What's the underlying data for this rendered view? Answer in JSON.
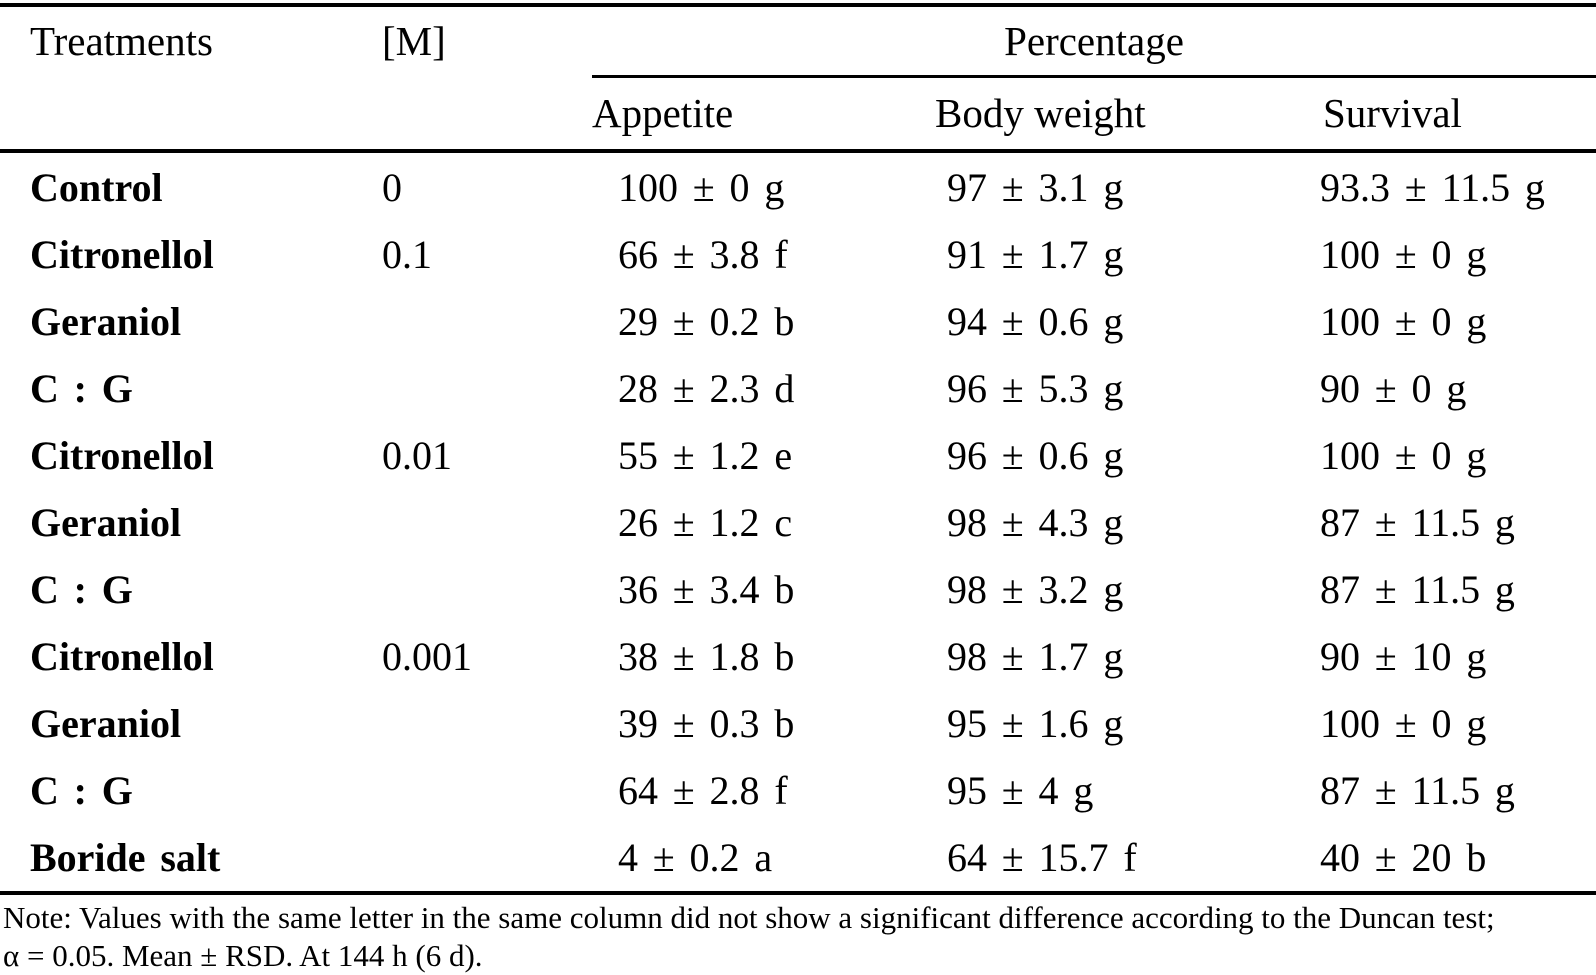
{
  "colors": {
    "background": "#ffffff",
    "text": "#000000",
    "rule": "#000000"
  },
  "table": {
    "headers": {
      "treatments": "Treatments",
      "concentration": "[M]",
      "percentage_group": "Percentage",
      "sub_headers": [
        "Appetite",
        "Body weight",
        "Survival"
      ]
    },
    "rows": [
      {
        "treatment": "Control",
        "concentration": "0",
        "appetite": "100 ± 0 g",
        "body_weight": "97 ± 3.1 g",
        "survival": "93.3 ± 11.5 g"
      },
      {
        "treatment": "Citronellol",
        "concentration": "0.1",
        "appetite": "66 ± 3.8 f",
        "body_weight": "91 ± 1.7 g",
        "survival": "100 ± 0 g"
      },
      {
        "treatment": "Geraniol",
        "concentration": "",
        "appetite": "29 ± 0.2 b",
        "body_weight": "94 ± 0.6 g",
        "survival": "100 ± 0 g"
      },
      {
        "treatment": "C : G",
        "concentration": "",
        "appetite": "28 ± 2.3 d",
        "body_weight": "96 ± 5.3 g",
        "survival": "90 ± 0 g"
      },
      {
        "treatment": "Citronellol",
        "concentration": "0.01",
        "appetite": "55 ± 1.2 e",
        "body_weight": "96 ± 0.6 g",
        "survival": "100 ± 0 g"
      },
      {
        "treatment": "Geraniol",
        "concentration": "",
        "appetite": "26 ± 1.2 c",
        "body_weight": "98 ± 4.3 g",
        "survival": "87 ± 11.5 g"
      },
      {
        "treatment": "C : G",
        "concentration": "",
        "appetite": "36 ± 3.4 b",
        "body_weight": "98 ± 3.2 g",
        "survival": "87 ± 11.5 g"
      },
      {
        "treatment": "Citronellol",
        "concentration": "0.001",
        "appetite": "38 ± 1.8 b",
        "body_weight": "98 ± 1.7 g",
        "survival": "90 ± 10 g"
      },
      {
        "treatment": "Geraniol",
        "concentration": "",
        "appetite": "39 ± 0.3 b",
        "body_weight": "95 ± 1.6 g",
        "survival": "100 ± 0 g"
      },
      {
        "treatment": "C : G",
        "concentration": "",
        "appetite": "64 ± 2.8 f",
        "body_weight": "95 ± 4 g",
        "survival": "87 ± 11.5 g"
      },
      {
        "treatment": "Boride salt",
        "concentration": "",
        "appetite": "4 ± 0.2 a",
        "body_weight": "64 ± 15.7 f",
        "survival": "40 ± 20 b"
      }
    ],
    "note_line1": "Note: Values with the same letter in the same column did not show a significant difference according to the Duncan test;",
    "note_line2": "α = 0.05. Mean ± RSD. At 144 h (6 d)."
  }
}
